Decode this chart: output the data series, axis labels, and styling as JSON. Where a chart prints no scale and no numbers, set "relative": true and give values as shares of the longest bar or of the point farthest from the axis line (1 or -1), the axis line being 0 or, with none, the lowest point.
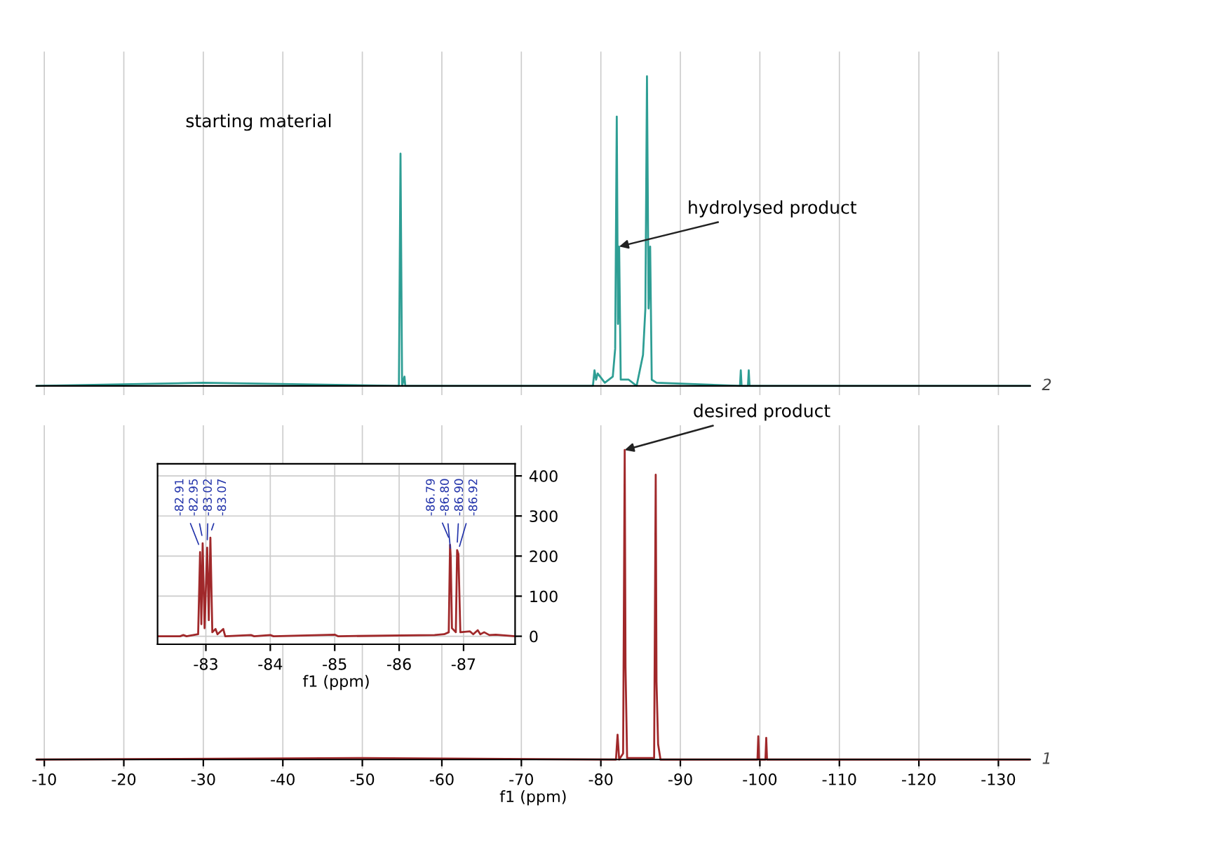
{
  "chart_data": [
    {
      "type": "line",
      "relative": true,
      "xlim": [
        -9,
        -134
      ],
      "xticks": [
        -10,
        -20,
        -30,
        -40,
        -50,
        -60,
        -70,
        -80,
        -90,
        -100,
        -110,
        -120,
        -130
      ],
      "tick_labels": false,
      "grid": "x",
      "series": [
        {
          "name": "2",
          "color": "#2e9e94",
          "x": [
            -9,
            -30,
            -54.6,
            -54.8,
            -55.0,
            -55.3,
            -55.4,
            -79.0,
            -79.2,
            -79.4,
            -79.6,
            -80.5,
            -81.5,
            -81.8,
            -82.0,
            -82.15,
            -82.3,
            -82.5,
            -83.5,
            -84.5,
            -85.3,
            -85.6,
            -85.8,
            -86.0,
            -86.2,
            -86.4,
            -87,
            -97.5,
            -97.6,
            -97.7,
            -98.5,
            -98.6,
            -98.7,
            -134
          ],
          "values": [
            0,
            0.01,
            0,
            0.75,
            0,
            0.03,
            0,
            0,
            0.05,
            0.02,
            0.04,
            0.01,
            0.03,
            0.12,
            0.87,
            0.2,
            0.45,
            0.02,
            0.02,
            0,
            0.1,
            0.25,
            1.0,
            0.25,
            0.45,
            0.02,
            0.01,
            0,
            0.05,
            0,
            0,
            0.05,
            0,
            0
          ]
        }
      ],
      "annotations": [
        "starting material",
        {
          "text": "hydrolysed product",
          "x": -82.3,
          "y": 0.45
        }
      ]
    },
    {
      "type": "line",
      "relative": true,
      "xlim": [
        -9,
        -134
      ],
      "xticks": [
        -10,
        -20,
        -30,
        -40,
        -50,
        -60,
        -70,
        -80,
        -90,
        -100,
        -110,
        -120,
        -130
      ],
      "tick_labels": "x",
      "grid": "x",
      "xlabel": "f1 (ppm)",
      "series": [
        {
          "name": "1",
          "color": "#a0282a",
          "x": [
            -9,
            -50,
            -81.9,
            -82.1,
            -82.3,
            -82.8,
            -83.0,
            -83.1,
            -83.3,
            -86.7,
            -86.9,
            -87.0,
            -87.2,
            -87.5,
            -99.7,
            -99.8,
            -99.9,
            -100.7,
            -100.8,
            -100.9,
            -134
          ],
          "values": [
            0,
            0.005,
            0,
            0.08,
            0,
            0.02,
            1.0,
            0.3,
            0.005,
            0.005,
            0.92,
            0.25,
            0.05,
            0,
            0,
            0.075,
            0,
            0,
            0.07,
            0,
            0
          ]
        }
      ],
      "annotations": [
        {
          "text": "desired product",
          "x": -83.0,
          "y": 1.0
        }
      ]
    },
    {
      "type": "line",
      "xlim": [
        -82.25,
        -87.8
      ],
      "xticks": [
        -83,
        -84,
        -85,
        -86,
        -87
      ],
      "ylim": [
        -20,
        430
      ],
      "yticks": [
        0,
        100,
        200,
        300,
        400
      ],
      "grid": true,
      "xlabel": "f1 (ppm)",
      "series": [
        {
          "color": "#a0282a",
          "x": [
            -82.25,
            -82.6,
            -82.65,
            -82.7,
            -82.88,
            -82.91,
            -82.93,
            -82.95,
            -82.98,
            -83.02,
            -83.045,
            -83.07,
            -83.1,
            -83.15,
            -83.18,
            -83.27,
            -83.3,
            -83.7,
            -83.75,
            -84.0,
            -84.05,
            -85.0,
            -85.05,
            -86.55,
            -86.7,
            -86.77,
            -86.79,
            -86.8,
            -86.82,
            -86.88,
            -86.9,
            -86.92,
            -86.95,
            -87.1,
            -87.15,
            -87.22,
            -87.26,
            -87.32,
            -87.4,
            -87.5,
            -87.8
          ],
          "values": [
            0,
            0,
            3,
            0,
            5,
            210,
            30,
            232,
            20,
            221,
            40,
            246,
            10,
            18,
            5,
            18,
            0,
            3,
            0,
            3,
            0,
            4,
            0,
            3,
            5,
            10,
            228,
            200,
            20,
            10,
            215,
            205,
            10,
            12,
            5,
            15,
            5,
            10,
            3,
            4,
            0
          ]
        }
      ],
      "annotations": [
        {
          "text": "-82.91",
          "x": -82.91,
          "y": 210
        },
        {
          "text": "-82.95",
          "x": -82.95,
          "y": 232
        },
        {
          "text": "-83.02",
          "x": -83.02,
          "y": 221
        },
        {
          "text": "-83.07",
          "x": -83.07,
          "y": 246
        },
        {
          "text": "-86.79",
          "x": -86.79,
          "y": 228
        },
        {
          "text": "-86.80",
          "x": -86.8,
          "y": 200
        },
        {
          "text": "-86.90",
          "x": -86.9,
          "y": 215
        },
        {
          "text": "-86.92",
          "x": -86.92,
          "y": 205
        }
      ]
    }
  ]
}
